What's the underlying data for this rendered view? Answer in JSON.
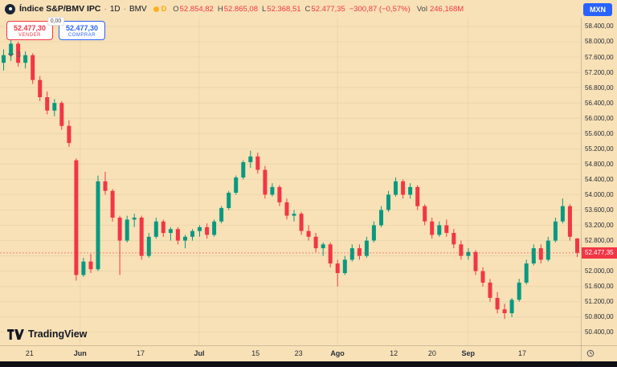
{
  "header": {
    "symbol": "Índice S&P/BMV IPC",
    "sep": "·",
    "interval": "1D",
    "exchange": "BMV",
    "delay_badge": "D",
    "ohlc": {
      "o_label": "O",
      "o": "52.854,82",
      "h_label": "H",
      "h": "52.865,08",
      "l_label": "L",
      "l": "52.368,51",
      "c_label": "C",
      "c": "52.477,35",
      "change": "−300,87 (−0,57%)"
    },
    "vol_label": "Vol",
    "vol_value": "246,168M",
    "currency_button": "MXN"
  },
  "trade_panel": {
    "sell_price": "52.477,30",
    "sell_label": "VENDER",
    "spread": "0,00",
    "buy_price": "52.477,30",
    "buy_label": "COMPRAR"
  },
  "object_tree": {
    "count": "3"
  },
  "logo": {
    "text": "TradingView"
  },
  "colors": {
    "up": "#089981",
    "down": "#F23645",
    "accent_blue": "#2962FF",
    "background": "#F8E1B6",
    "text": "#131722"
  },
  "chart_data": {
    "type": "candlestick",
    "title": "Índice S&P/BMV IPC · 1D · BMV",
    "currency": "MXN",
    "price_min": 50060,
    "price_max": 58630,
    "last_price": 52477.35,
    "last_price_label": "52.477,35",
    "grid": true,
    "y_ticks": [
      {
        "value": 58400,
        "label": "58.400,00"
      },
      {
        "value": 58000,
        "label": "58.000,00"
      },
      {
        "value": 57600,
        "label": "57.600,00"
      },
      {
        "value": 57200,
        "label": "57.200,00"
      },
      {
        "value": 56800,
        "label": "56.800,00"
      },
      {
        "value": 56400,
        "label": "56.400,00"
      },
      {
        "value": 56000,
        "label": "56.000,00"
      },
      {
        "value": 55600,
        "label": "55.600,00"
      },
      {
        "value": 55200,
        "label": "55.200,00"
      },
      {
        "value": 54800,
        "label": "54.800,00"
      },
      {
        "value": 54400,
        "label": "54.400,00"
      },
      {
        "value": 54000,
        "label": "54.000,00"
      },
      {
        "value": 53600,
        "label": "53.600,00"
      },
      {
        "value": 53200,
        "label": "53.200,00"
      },
      {
        "value": 52800,
        "label": "52.800,00"
      },
      {
        "value": 52400,
        "label": "52.400,00"
      },
      {
        "value": 52000,
        "label": "52.000,00"
      },
      {
        "value": 51600,
        "label": "51.600,00"
      },
      {
        "value": 51200,
        "label": "51.200,00"
      },
      {
        "value": 50800,
        "label": "50.800,00"
      },
      {
        "value": 50400,
        "label": "50.400,00"
      }
    ],
    "x_ticks": [
      {
        "label": "21",
        "pos": 0.051,
        "major": false
      },
      {
        "label": "Jun",
        "pos": 0.138,
        "major": true
      },
      {
        "label": "17",
        "pos": 0.242,
        "major": false
      },
      {
        "label": "Jul",
        "pos": 0.343,
        "major": true
      },
      {
        "label": "15",
        "pos": 0.44,
        "major": false
      },
      {
        "label": "23",
        "pos": 0.514,
        "major": false
      },
      {
        "label": "Ago",
        "pos": 0.581,
        "major": true
      },
      {
        "label": "12",
        "pos": 0.678,
        "major": false
      },
      {
        "label": "20",
        "pos": 0.744,
        "major": false
      },
      {
        "label": "Sep",
        "pos": 0.806,
        "major": true
      },
      {
        "label": "17",
        "pos": 0.899,
        "major": false
      }
    ],
    "candles": [
      [
        57450,
        57800,
        57250,
        57650
      ],
      [
        57650,
        58050,
        57500,
        57950
      ],
      [
        57950,
        58000,
        57350,
        57450
      ],
      [
        57450,
        57750,
        57300,
        57650
      ],
      [
        57650,
        57700,
        56900,
        57000
      ],
      [
        57000,
        57100,
        56450,
        56550
      ],
      [
        56550,
        56700,
        56100,
        56200
      ],
      [
        56200,
        56500,
        56050,
        56400
      ],
      [
        56400,
        56450,
        55700,
        55800
      ],
      [
        55800,
        55950,
        55250,
        55350
      ],
      [
        54900,
        54950,
        51750,
        51900
      ],
      [
        51900,
        52350,
        51850,
        52250
      ],
      [
        52250,
        52450,
        51950,
        52050
      ],
      [
        52050,
        54500,
        52000,
        54350
      ],
      [
        54350,
        54600,
        54000,
        54100
      ],
      [
        54100,
        54150,
        53300,
        53400
      ],
      [
        53400,
        53450,
        51900,
        52800
      ],
      [
        52800,
        53450,
        52750,
        53350
      ],
      [
        53350,
        53500,
        53150,
        53400
      ],
      [
        53400,
        53450,
        52300,
        52400
      ],
      [
        52400,
        53000,
        52350,
        52900
      ],
      [
        52900,
        53400,
        52850,
        53300
      ],
      [
        53300,
        53350,
        52900,
        53000
      ],
      [
        53000,
        53150,
        52800,
        53100
      ],
      [
        53100,
        53150,
        52700,
        52800
      ],
      [
        52800,
        52950,
        52600,
        52900
      ],
      [
        52900,
        53100,
        52800,
        53050
      ],
      [
        53050,
        53200,
        52900,
        53150
      ],
      [
        53150,
        53250,
        52850,
        52950
      ],
      [
        52950,
        53350,
        52900,
        53300
      ],
      [
        53300,
        53700,
        53250,
        53650
      ],
      [
        53650,
        54100,
        53600,
        54050
      ],
      [
        54050,
        54500,
        54000,
        54450
      ],
      [
        54450,
        54900,
        54400,
        54850
      ],
      [
        54850,
        55150,
        54700,
        55000
      ],
      [
        55000,
        55100,
        54550,
        54650
      ],
      [
        54650,
        54750,
        53900,
        54000
      ],
      [
        54000,
        54300,
        53950,
        54200
      ],
      [
        54200,
        54250,
        53700,
        53800
      ],
      [
        53800,
        53900,
        53350,
        53450
      ],
      [
        53450,
        53600,
        53300,
        53500
      ],
      [
        53500,
        53550,
        52950,
        53050
      ],
      [
        53050,
        53200,
        52800,
        52900
      ],
      [
        52900,
        53000,
        52500,
        52600
      ],
      [
        52600,
        52750,
        52400,
        52700
      ],
      [
        52700,
        52750,
        52100,
        52200
      ],
      [
        52200,
        52300,
        51600,
        51950
      ],
      [
        51950,
        52400,
        51900,
        52300
      ],
      [
        52300,
        52700,
        52250,
        52600
      ],
      [
        52600,
        52700,
        52300,
        52400
      ],
      [
        52400,
        52900,
        52350,
        52800
      ],
      [
        52800,
        53300,
        52750,
        53200
      ],
      [
        53200,
        53700,
        53150,
        53600
      ],
      [
        53600,
        54100,
        53550,
        54000
      ],
      [
        54000,
        54450,
        53950,
        54350
      ],
      [
        54350,
        54400,
        53900,
        54000
      ],
      [
        54000,
        54300,
        53900,
        54200
      ],
      [
        54200,
        54250,
        53600,
        53700
      ],
      [
        53700,
        53750,
        53200,
        53300
      ],
      [
        53300,
        53400,
        52850,
        52950
      ],
      [
        52950,
        53300,
        52900,
        53200
      ],
      [
        53200,
        53350,
        52900,
        53000
      ],
      [
        53000,
        53100,
        52600,
        52700
      ],
      [
        52700,
        52800,
        52300,
        52400
      ],
      [
        52400,
        52600,
        52300,
        52500
      ],
      [
        52500,
        52550,
        51900,
        52000
      ],
      [
        52000,
        52100,
        51600,
        51700
      ],
      [
        51700,
        51800,
        51200,
        51300
      ],
      [
        51300,
        51450,
        50900,
        51000
      ],
      [
        51000,
        51150,
        50750,
        50900
      ],
      [
        50900,
        51300,
        50800,
        51250
      ],
      [
        51250,
        51800,
        51200,
        51700
      ],
      [
        51700,
        52300,
        51650,
        52200
      ],
      [
        52200,
        52700,
        52150,
        52600
      ],
      [
        52600,
        52700,
        52200,
        52300
      ],
      [
        52300,
        52900,
        52250,
        52800
      ],
      [
        52800,
        53400,
        52750,
        53300
      ],
      [
        53300,
        53900,
        53250,
        53700
      ],
      [
        53700,
        53750,
        52800,
        52900
      ],
      [
        52854.82,
        52865.08,
        52368.51,
        52477.35
      ]
    ]
  }
}
